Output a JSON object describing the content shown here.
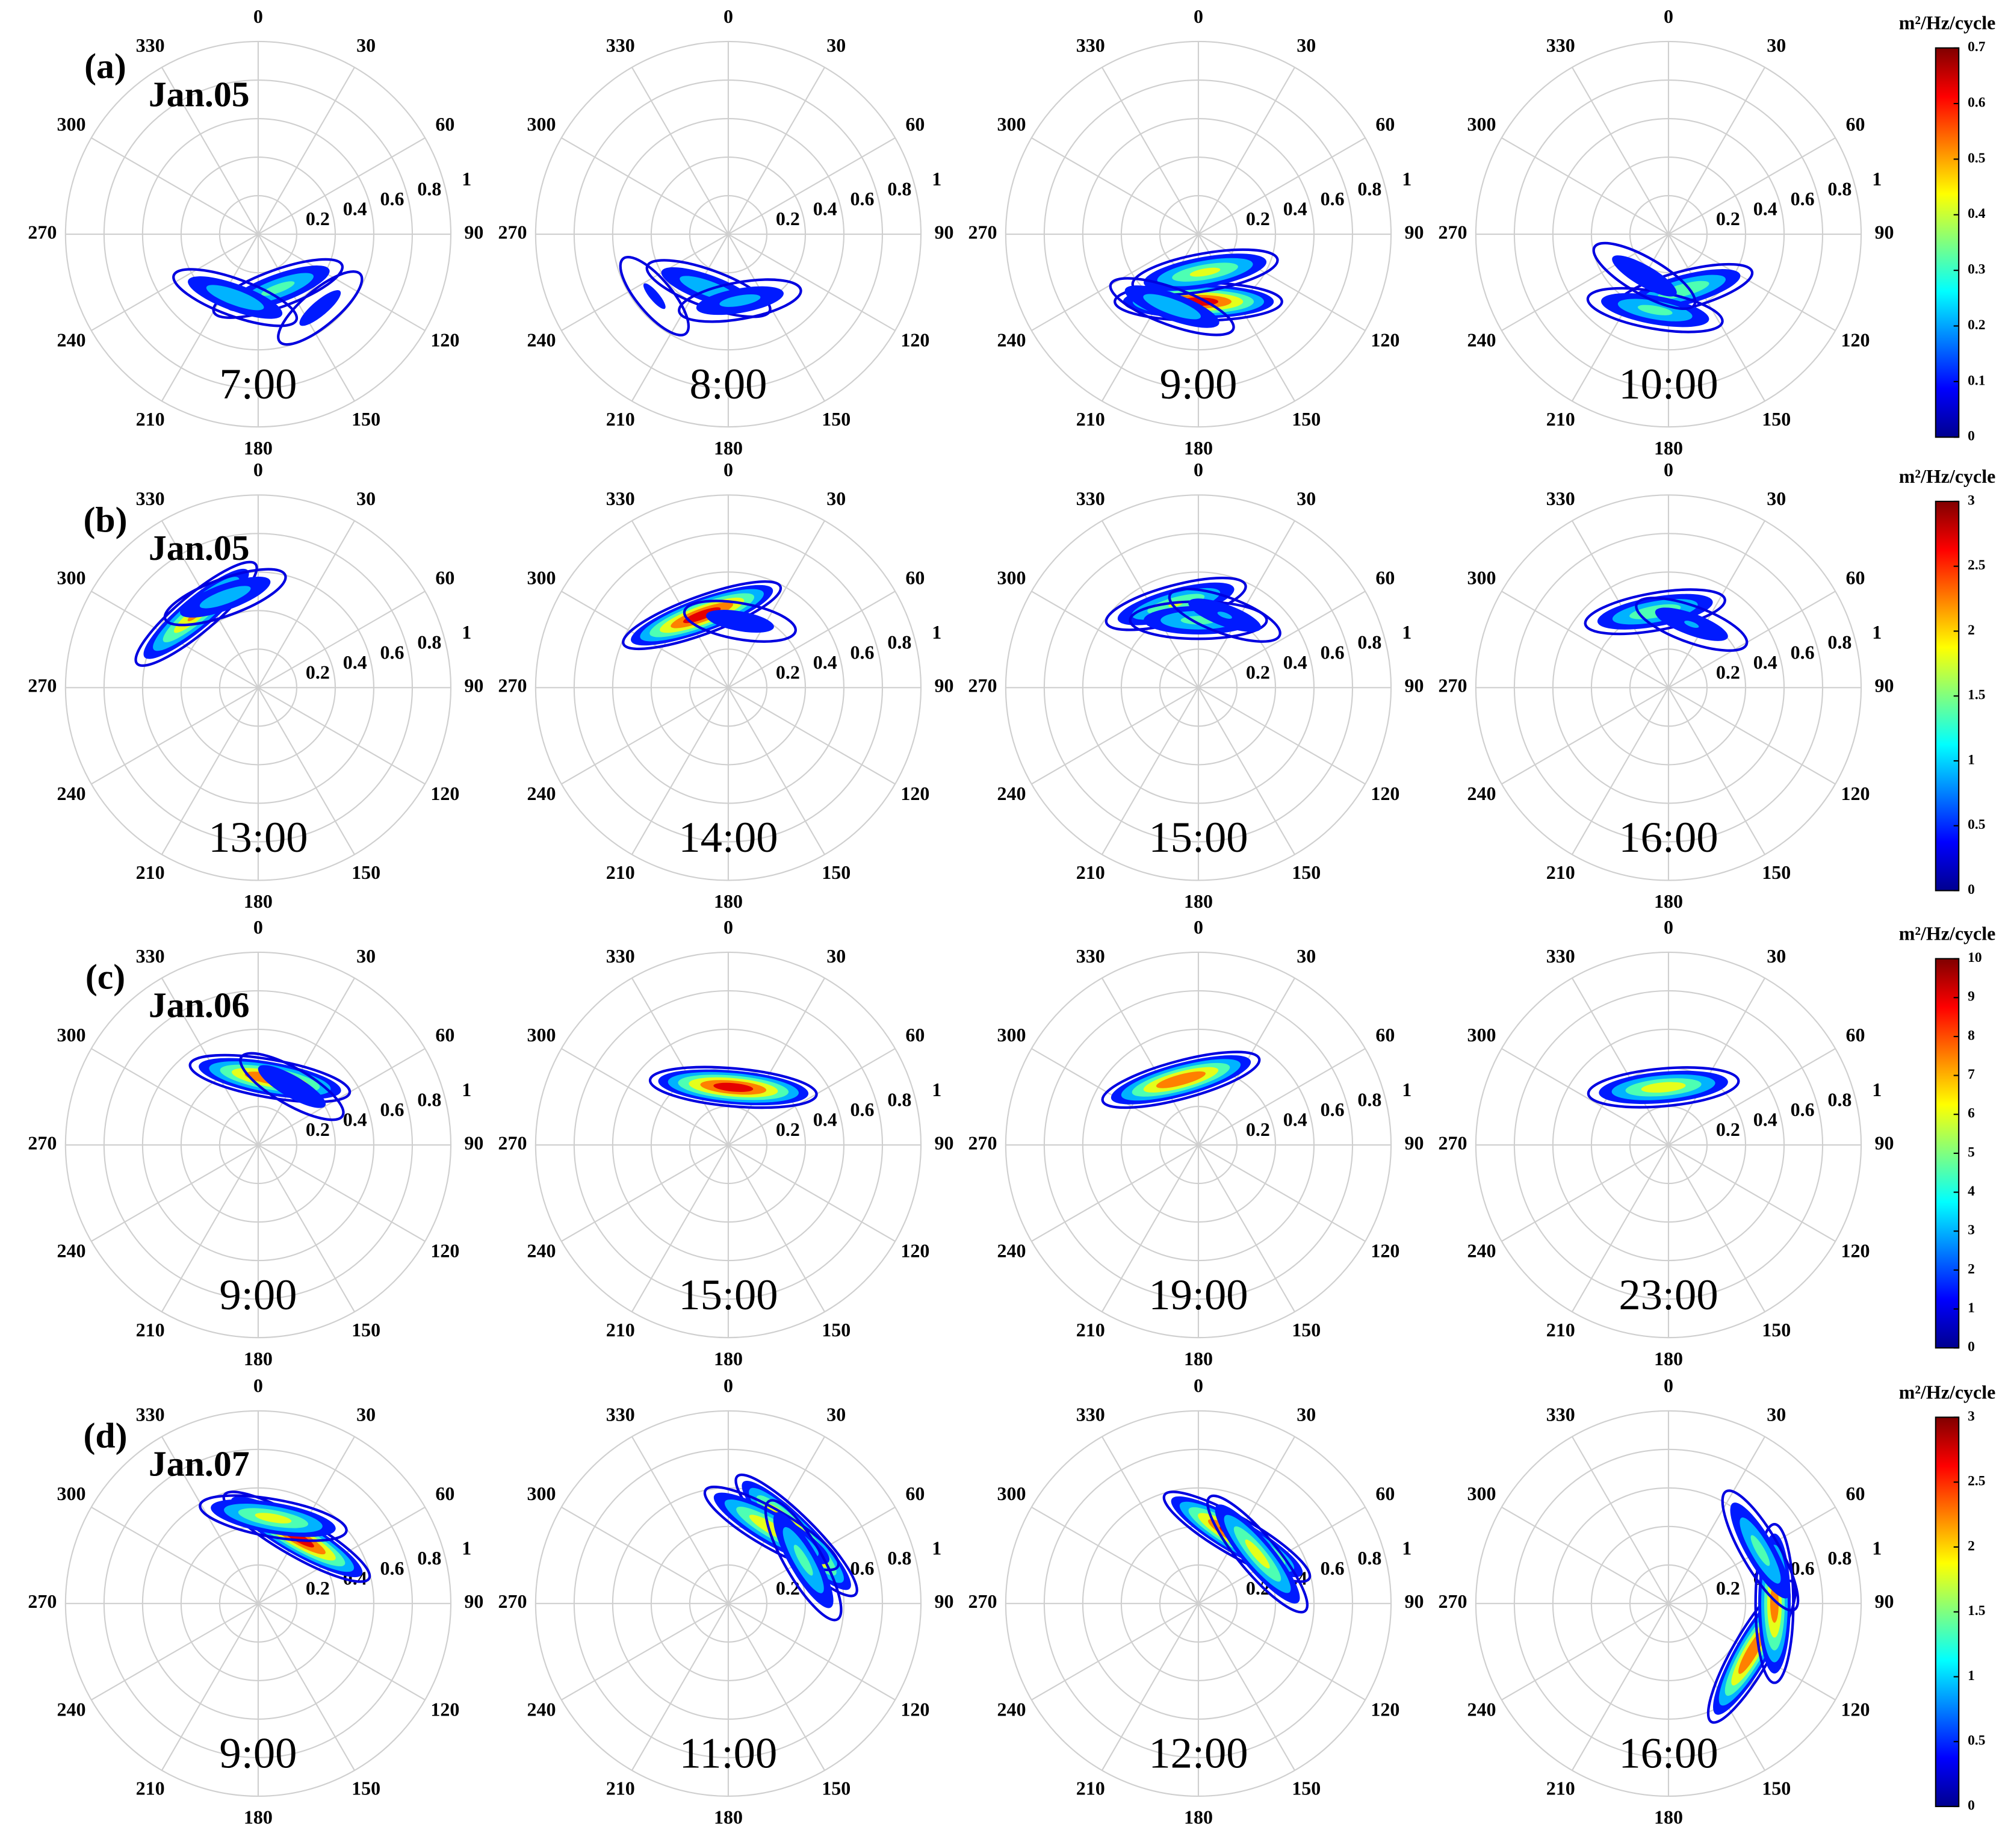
{
  "chart_data": [
    {
      "type": "polar-contour",
      "title": "7:00",
      "panel_label": "(a)",
      "date": "Jan.05",
      "thetaticks": [
        0,
        30,
        60,
        90,
        120,
        150,
        180,
        210,
        240,
        270,
        300,
        330
      ],
      "rlim": [
        0,
        1
      ],
      "rticks": [
        0.2,
        0.4,
        0.6,
        0.8,
        1
      ],
      "clim": [
        0,
        0.7
      ],
      "theta": [
        160,
        200,
        140
      ],
      "r": [
        0.3,
        0.35,
        0.5
      ],
      "values": [
        0.35,
        0.3,
        0.15
      ]
    },
    {
      "type": "polar-contour",
      "title": "8:00",
      "thetaticks": [
        0,
        30,
        60,
        90,
        120,
        150,
        180,
        210,
        240,
        270,
        300,
        330
      ],
      "rlim": [
        0,
        1
      ],
      "rticks": [
        0.2,
        0.4,
        0.6,
        0.8,
        1
      ],
      "clim": [
        0,
        0.7
      ],
      "theta": [
        200,
        170,
        230
      ],
      "r": [
        0.3,
        0.35,
        0.5
      ],
      "values": [
        0.3,
        0.25,
        0.12
      ]
    },
    {
      "type": "polar-contour",
      "title": "9:00",
      "thetaticks": [
        0,
        30,
        60,
        90,
        120,
        150,
        180,
        210,
        240,
        270,
        300,
        330
      ],
      "rlim": [
        0,
        1
      ],
      "rticks": [
        0.2,
        0.4,
        0.6,
        0.8,
        1
      ],
      "clim": [
        0,
        0.7
      ],
      "theta": [
        180,
        170,
        200
      ],
      "r": [
        0.35,
        0.2,
        0.4
      ],
      "values": [
        0.7,
        0.45,
        0.3
      ]
    },
    {
      "type": "polar-contour",
      "title": "10:00",
      "thetaticks": [
        0,
        30,
        60,
        90,
        120,
        150,
        180,
        210,
        240,
        270,
        300,
        330
      ],
      "rlim": [
        0,
        1
      ],
      "rticks": [
        0.2,
        0.4,
        0.6,
        0.8,
        1
      ],
      "clim": [
        0,
        0.7
      ],
      "theta": [
        165,
        190,
        210
      ],
      "r": [
        0.3,
        0.4,
        0.25
      ],
      "values": [
        0.4,
        0.35,
        0.2
      ],
      "colorbar": {
        "label": "m²/Hz/cycle",
        "ticks": [
          0,
          0.1,
          0.2,
          0.3,
          0.4,
          0.5,
          0.6,
          0.7
        ]
      }
    },
    {
      "type": "polar-contour",
      "title": "13:00",
      "panel_label": "(b)",
      "date": "Jan.05",
      "thetaticks": [
        0,
        30,
        60,
        90,
        120,
        150,
        180,
        210,
        240,
        270,
        300,
        330
      ],
      "rlim": [
        0,
        1
      ],
      "rticks": [
        0.2,
        0.4,
        0.6,
        0.8,
        1
      ],
      "clim": [
        0,
        3
      ],
      "theta": [
        320,
        340
      ],
      "r": [
        0.5,
        0.5
      ],
      "values": [
        2.3,
        1.2
      ]
    },
    {
      "type": "polar-contour",
      "title": "14:00",
      "thetaticks": [
        0,
        30,
        60,
        90,
        120,
        150,
        180,
        210,
        240,
        270,
        300,
        330
      ],
      "rlim": [
        0,
        1
      ],
      "rticks": [
        0.2,
        0.4,
        0.6,
        0.8,
        1
      ],
      "clim": [
        0,
        3
      ],
      "theta": [
        340,
        10
      ],
      "r": [
        0.4,
        0.35
      ],
      "values": [
        3,
        0.8
      ]
    },
    {
      "type": "polar-contour",
      "title": "15:00",
      "thetaticks": [
        0,
        30,
        60,
        90,
        120,
        150,
        180,
        210,
        240,
        270,
        300,
        330
      ],
      "rlim": [
        0,
        1
      ],
      "rticks": [
        0.2,
        0.4,
        0.6,
        0.8,
        1
      ],
      "clim": [
        0,
        3
      ],
      "theta": [
        345,
        0,
        20
      ],
      "r": [
        0.45,
        0.35,
        0.4
      ],
      "values": [
        1.8,
        1.5,
        0.9
      ]
    },
    {
      "type": "polar-contour",
      "title": "16:00",
      "thetaticks": [
        0,
        30,
        60,
        90,
        120,
        150,
        180,
        210,
        240,
        270,
        300,
        330
      ],
      "rlim": [
        0,
        1
      ],
      "rticks": [
        0.2,
        0.4,
        0.6,
        0.8,
        1
      ],
      "clim": [
        0,
        3
      ],
      "theta": [
        350,
        20
      ],
      "r": [
        0.4,
        0.35
      ],
      "values": [
        1.7,
        0.9
      ],
      "colorbar": {
        "label": "m²/Hz/cycle",
        "ticks": [
          0,
          0.5,
          1,
          1.5,
          2,
          2.5,
          3
        ]
      }
    },
    {
      "type": "polar-contour",
      "title": "9:00",
      "panel_label": "(c)",
      "date": "Jan.06",
      "thetaticks": [
        0,
        30,
        60,
        90,
        120,
        150,
        180,
        210,
        240,
        270,
        300,
        330
      ],
      "rlim": [
        0,
        1
      ],
      "rticks": [
        0.2,
        0.4,
        0.6,
        0.8,
        1
      ],
      "clim": [
        0,
        10
      ],
      "theta": [
        10,
        30
      ],
      "r": [
        0.35,
        0.35
      ],
      "values": [
        9,
        3
      ]
    },
    {
      "type": "polar-contour",
      "title": "15:00",
      "thetaticks": [
        0,
        30,
        60,
        90,
        120,
        150,
        180,
        210,
        240,
        270,
        300,
        330
      ],
      "rlim": [
        0,
        1
      ],
      "rticks": [
        0.2,
        0.4,
        0.6,
        0.8,
        1
      ],
      "clim": [
        0,
        10
      ],
      "theta": [
        5
      ],
      "r": [
        0.3
      ],
      "values": [
        10
      ]
    },
    {
      "type": "polar-contour",
      "title": "19:00",
      "thetaticks": [
        0,
        30,
        60,
        90,
        120,
        150,
        180,
        210,
        240,
        270,
        300,
        330
      ],
      "rlim": [
        0,
        1
      ],
      "rticks": [
        0.2,
        0.4,
        0.6,
        0.8,
        1
      ],
      "clim": [
        0,
        10
      ],
      "theta": [
        345
      ],
      "r": [
        0.35
      ],
      "values": [
        9
      ]
    },
    {
      "type": "polar-contour",
      "title": "23:00",
      "thetaticks": [
        0,
        30,
        60,
        90,
        120,
        150,
        180,
        210,
        240,
        270,
        300,
        330
      ],
      "rlim": [
        0,
        1
      ],
      "rticks": [
        0.2,
        0.4,
        0.6,
        0.8,
        1
      ],
      "clim": [
        0,
        10
      ],
      "theta": [
        355
      ],
      "r": [
        0.3
      ],
      "values": [
        7
      ],
      "colorbar": {
        "label": "m²/Hz/cycle",
        "ticks": [
          0,
          1,
          2,
          3,
          4,
          5,
          6,
          7,
          8,
          9,
          10
        ]
      }
    },
    {
      "type": "polar-contour",
      "title": "9:00",
      "panel_label": "(d)",
      "date": "Jan.07",
      "thetaticks": [
        0,
        30,
        60,
        90,
        120,
        150,
        180,
        210,
        240,
        270,
        300,
        330
      ],
      "rlim": [
        0,
        1
      ],
      "rticks": [
        0.2,
        0.4,
        0.6,
        0.8,
        1
      ],
      "clim": [
        0,
        3
      ],
      "theta": [
        30,
        10
      ],
      "r": [
        0.4,
        0.45
      ],
      "values": [
        3,
        2
      ]
    },
    {
      "type": "polar-contour",
      "title": "11:00",
      "thetaticks": [
        0,
        30,
        60,
        90,
        120,
        150,
        180,
        210,
        240,
        270,
        300,
        330
      ],
      "rlim": [
        0,
        1
      ],
      "rticks": [
        0.2,
        0.4,
        0.6,
        0.8,
        1
      ],
      "clim": [
        0,
        3
      ],
      "theta": [
        45,
        30,
        60
      ],
      "r": [
        0.5,
        0.45,
        0.45
      ],
      "values": [
        3,
        2.2,
        1.5
      ]
    },
    {
      "type": "polar-contour",
      "title": "12:00",
      "thetaticks": [
        0,
        30,
        60,
        90,
        120,
        150,
        180,
        210,
        240,
        270,
        300,
        330
      ],
      "rlim": [
        0,
        1
      ],
      "rticks": [
        0.2,
        0.4,
        0.6,
        0.8,
        1
      ],
      "clim": [
        0,
        3
      ],
      "theta": [
        30,
        50
      ],
      "r": [
        0.4,
        0.4
      ],
      "values": [
        3,
        2
      ]
    },
    {
      "type": "polar-contour",
      "title": "16:00",
      "thetaticks": [
        0,
        30,
        60,
        90,
        120,
        150,
        180,
        210,
        240,
        270,
        300,
        330
      ],
      "rlim": [
        0,
        1
      ],
      "rticks": [
        0.2,
        0.4,
        0.6,
        0.8,
        1
      ],
      "clim": [
        0,
        3
      ],
      "theta": [
        120,
        90,
        60
      ],
      "r": [
        0.5,
        0.55,
        0.55
      ],
      "values": [
        2.7,
        2.5,
        1.5
      ],
      "colorbar": {
        "label": "m²/Hz/cycle",
        "ticks": [
          0,
          0.5,
          1,
          1.5,
          2,
          2.5,
          3
        ]
      }
    }
  ]
}
